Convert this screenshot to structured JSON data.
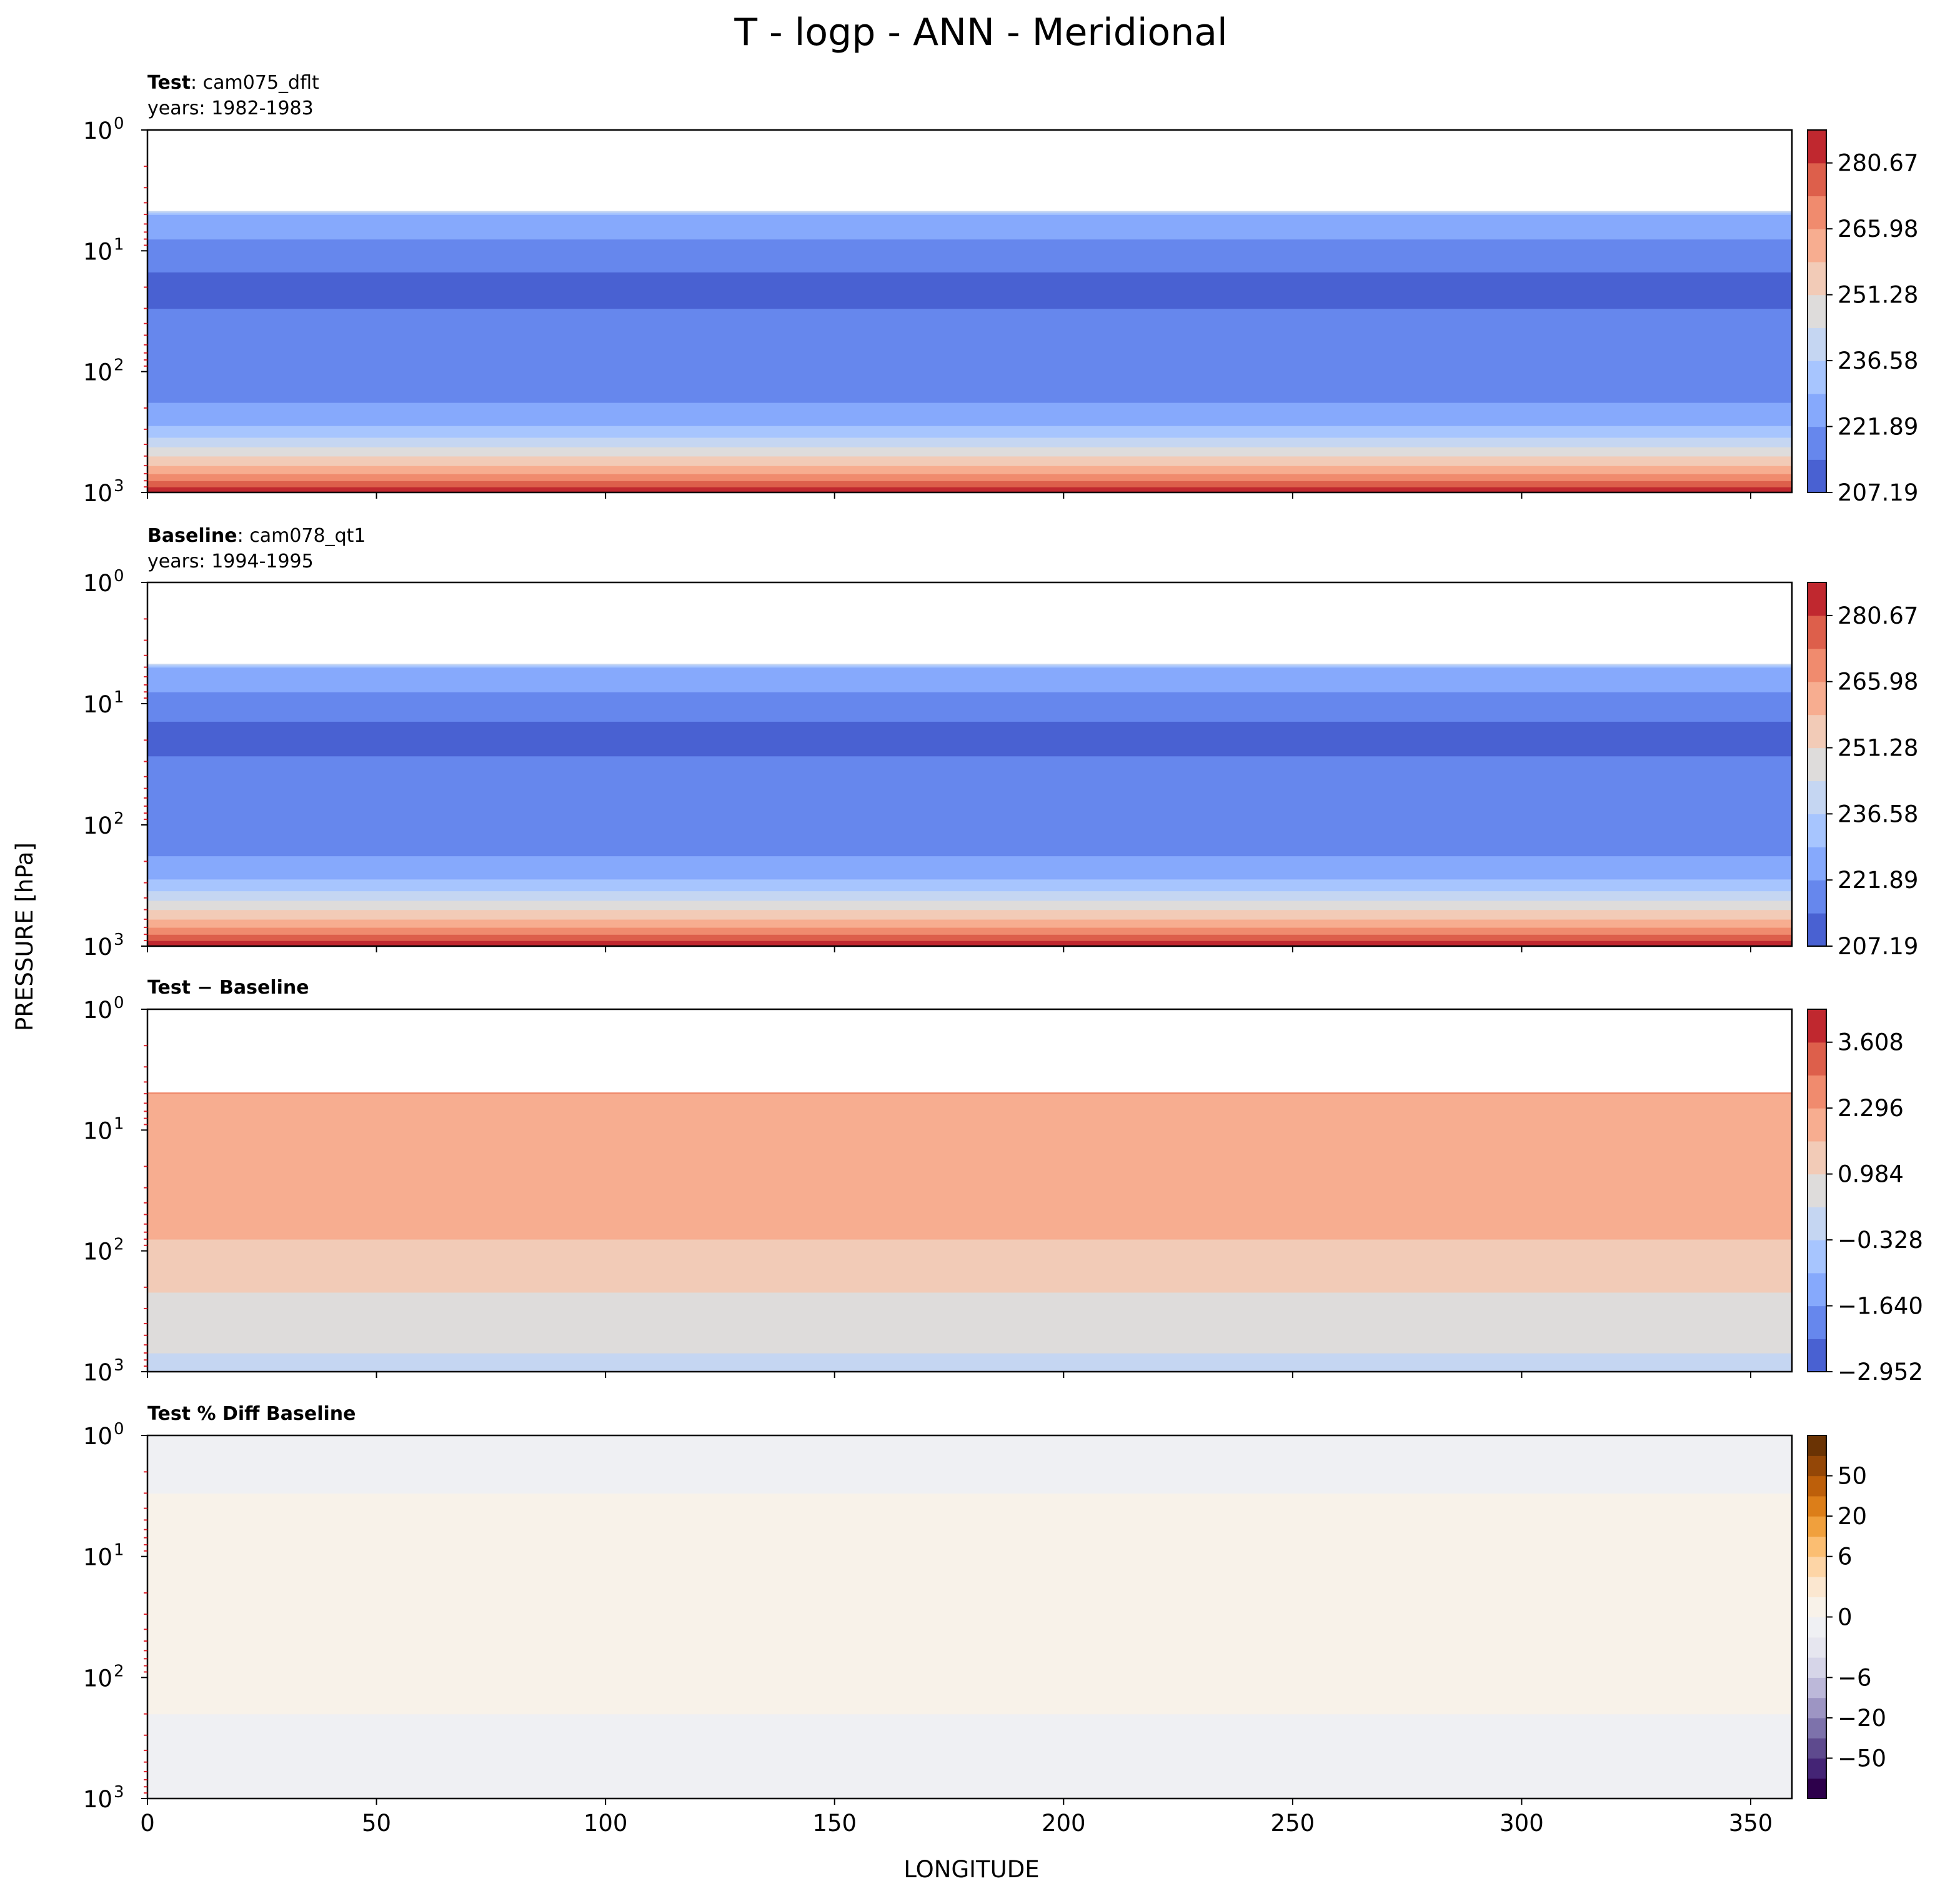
{
  "chart_data": {
    "title": "T - logp - ANN - Meridional",
    "xlabel": "LONGITUDE",
    "ylabel": "PRESSURE [hPa]",
    "xlim": [
      0,
      359
    ],
    "x_ticks": [
      "0",
      "50",
      "100",
      "150",
      "200",
      "250",
      "300",
      "350"
    ],
    "y_scale": "log",
    "y_inverted": true,
    "ylim": [
      1000,
      1
    ],
    "y_ticks": [
      {
        "base": "10",
        "exp": "0"
      },
      {
        "base": "10",
        "exp": "1"
      },
      {
        "base": "10",
        "exp": "2"
      },
      {
        "base": "10",
        "exp": "3"
      }
    ],
    "panels": [
      {
        "type": "heatmap",
        "title_bold": "Test",
        "title_rest": ": cam075_dflt",
        "subtitle": "years: 1982-1983",
        "colormap": "coolwarm",
        "levels": 11,
        "cbar_ticks": [
          "280.67",
          "265.98",
          "251.28",
          "236.58",
          "221.89",
          "207.19"
        ],
        "colors": [
          "#4961d2",
          "#6687ed",
          "#86a9fc",
          "#a7c5fe",
          "#c5d6f2",
          "#dedcdb",
          "#f2cbb7",
          "#f7ad90",
          "#f08b6e",
          "#dd5f4b",
          "#c0282f"
        ],
        "bands": [
          {
            "p": 1000,
            "level": 10
          },
          {
            "p": 900,
            "level": 9
          },
          {
            "p": 800,
            "level": 8
          },
          {
            "p": 700,
            "level": 7
          },
          {
            "p": 600,
            "level": 6
          },
          {
            "p": 500,
            "level": 5
          },
          {
            "p": 420,
            "level": 4
          },
          {
            "p": 350,
            "level": 3
          },
          {
            "p": 280,
            "level": 2
          },
          {
            "p": 180,
            "level": 1
          },
          {
            "p": 30,
            "level": 0
          },
          {
            "p": 15,
            "level": 1
          },
          {
            "p": 8,
            "level": 2
          },
          {
            "p": 5,
            "level": 3
          },
          {
            "p": 4.8,
            "level": 4
          }
        ]
      },
      {
        "type": "heatmap",
        "title_bold": "Baseline",
        "title_rest": ": cam078_qt1",
        "subtitle": "years: 1994-1995",
        "colormap": "coolwarm",
        "levels": 11,
        "cbar_ticks": [
          "280.67",
          "265.98",
          "251.28",
          "236.58",
          "221.89",
          "207.19"
        ],
        "colors": [
          "#4961d2",
          "#6687ed",
          "#86a9fc",
          "#a7c5fe",
          "#c5d6f2",
          "#dedcdb",
          "#f2cbb7",
          "#f7ad90",
          "#f08b6e",
          "#dd5f4b",
          "#c0282f"
        ],
        "bands": [
          {
            "p": 1000,
            "level": 10
          },
          {
            "p": 900,
            "level": 9
          },
          {
            "p": 800,
            "level": 8
          },
          {
            "p": 700,
            "level": 7
          },
          {
            "p": 600,
            "level": 6
          },
          {
            "p": 500,
            "level": 5
          },
          {
            "p": 420,
            "level": 4
          },
          {
            "p": 350,
            "level": 3
          },
          {
            "p": 280,
            "level": 2
          },
          {
            "p": 180,
            "level": 1
          },
          {
            "p": 27,
            "level": 0
          },
          {
            "p": 14,
            "level": 1
          },
          {
            "p": 8,
            "level": 2
          },
          {
            "p": 5,
            "level": 3
          },
          {
            "p": 4.8,
            "level": 4
          }
        ]
      },
      {
        "type": "heatmap",
        "title_bold": "Test − Baseline",
        "title_rest": "",
        "subtitle": "",
        "colormap": "coolwarm",
        "levels": 11,
        "cbar_ticks": [
          "3.608",
          "2.296",
          "0.984",
          "−0.328",
          "−1.640",
          "−2.952"
        ],
        "colors": [
          "#4961d2",
          "#6687ed",
          "#86a9fc",
          "#a7c5fe",
          "#c5d6f2",
          "#dedcdb",
          "#f2cbb7",
          "#f7ad90",
          "#f08b6e",
          "#dd5f4b",
          "#c0282f"
        ],
        "bands": [
          {
            "p": 1000,
            "level": 4
          },
          {
            "p": 700,
            "level": 5
          },
          {
            "p": 220,
            "level": 6
          },
          {
            "p": 80,
            "level": 7
          },
          {
            "p": 5,
            "level": 8
          }
        ]
      },
      {
        "type": "heatmap",
        "title_bold": "Test % Diff Baseline",
        "title_rest": "",
        "subtitle": "",
        "colormap": "PuOr_r",
        "cbar_ticks": [
          "50",
          "20",
          "6",
          "0",
          "−6",
          "−20",
          "−50"
        ],
        "colors": [
          "#2d004b",
          "#442475",
          "#5e4a8e",
          "#7d72ab",
          "#9d95c3",
          "#bcb8d9",
          "#d6d5e8",
          "#e6e6ef",
          "#eff0f3",
          "#f8f2e9",
          "#fbe7d0",
          "#fdd5a6",
          "#fbbe72",
          "#f0a03d",
          "#dc7e19",
          "#bd5f0a",
          "#944707",
          "#6a3304"
        ],
        "bands": [
          {
            "p": 1000,
            "level": 8
          },
          {
            "p": 200,
            "level": 9
          },
          {
            "p": 3,
            "level": 8
          }
        ]
      }
    ]
  }
}
